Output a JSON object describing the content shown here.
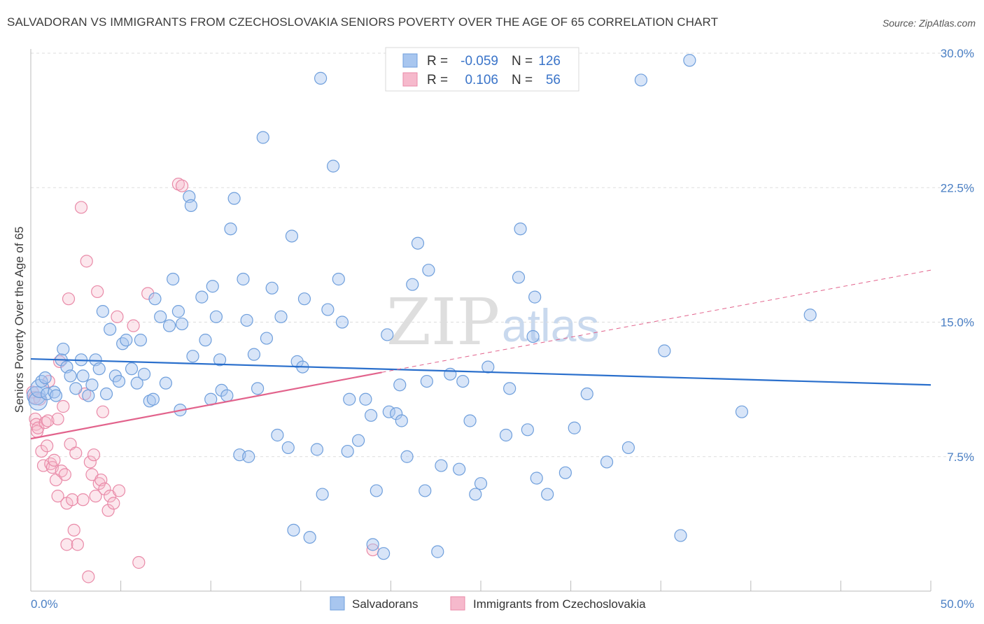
{
  "title": "SALVADORAN VS IMMIGRANTS FROM CZECHOSLOVAKIA SENIORS POVERTY OVER THE AGE OF 65 CORRELATION CHART",
  "source": "Source: ZipAtlas.com",
  "watermark": {
    "zip": "ZIP",
    "atlas": "atlas"
  },
  "colors": {
    "blue_fill": "#a8c6ef",
    "blue_stroke": "#6f9fdc",
    "blue_line": "#2a6fcc",
    "pink_fill": "#f6b9cc",
    "pink_stroke": "#e98aa8",
    "pink_line": "#e2638c",
    "grid": "#dddddd",
    "tick_text": "#4a7fc4"
  },
  "legend": {
    "row1": {
      "r_label": "R =",
      "r_value": "-0.059",
      "n_label": "N =",
      "n_value": "126"
    },
    "row2": {
      "r_label": "R =",
      "r_value": "0.106",
      "n_label": "N =",
      "n_value": "56"
    }
  },
  "chart_data": {
    "type": "scatter",
    "title": "SALVADORAN VS IMMIGRANTS FROM CZECHOSLOVAKIA SENIORS POVERTY OVER THE AGE OF 65 CORRELATION CHART",
    "xlabel": "",
    "ylabel": "Seniors Poverty Over the Age of 65",
    "xlim": [
      0,
      50
    ],
    "ylim": [
      0,
      30.6
    ],
    "x_tick_labels": [
      "0.0%",
      "50.0%"
    ],
    "y_ticks": [
      7.5,
      15.0,
      22.5,
      30.0
    ],
    "y_tick_labels": [
      "7.5%",
      "15.0%",
      "22.5%",
      "30.0%"
    ],
    "grid": true,
    "legend_position": "top-center",
    "series": [
      {
        "name": "Salvadorans",
        "r": -0.059,
        "n": 126,
        "trend": {
          "x": [
            0,
            50
          ],
          "y": [
            12.95,
            11.5
          ]
        },
        "points": [
          [
            0.3,
            10.9
          ],
          [
            0.4,
            10.6
          ],
          [
            0.5,
            11.3
          ],
          [
            0.6,
            11.7
          ],
          [
            0.8,
            11.9
          ],
          [
            0.9,
            11.0
          ],
          [
            1.3,
            11.1
          ],
          [
            1.4,
            10.9
          ],
          [
            1.7,
            12.9
          ],
          [
            1.8,
            13.5
          ],
          [
            2.0,
            12.5
          ],
          [
            2.2,
            12.0
          ],
          [
            2.5,
            11.3
          ],
          [
            2.8,
            12.9
          ],
          [
            2.9,
            12.0
          ],
          [
            3.2,
            10.9
          ],
          [
            3.4,
            11.5
          ],
          [
            3.6,
            12.9
          ],
          [
            3.8,
            12.4
          ],
          [
            4.0,
            15.6
          ],
          [
            4.2,
            11.0
          ],
          [
            4.4,
            14.6
          ],
          [
            4.7,
            12.0
          ],
          [
            4.9,
            11.7
          ],
          [
            5.1,
            13.8
          ],
          [
            5.3,
            14.0
          ],
          [
            5.6,
            12.4
          ],
          [
            5.9,
            11.6
          ],
          [
            6.1,
            14.0
          ],
          [
            6.3,
            12.1
          ],
          [
            6.6,
            10.6
          ],
          [
            6.8,
            10.7
          ],
          [
            6.9,
            16.3
          ],
          [
            7.2,
            15.3
          ],
          [
            7.5,
            11.6
          ],
          [
            7.7,
            14.8
          ],
          [
            7.9,
            17.4
          ],
          [
            8.2,
            15.6
          ],
          [
            8.3,
            10.1
          ],
          [
            8.4,
            14.9
          ],
          [
            8.8,
            22.0
          ],
          [
            8.9,
            21.5
          ],
          [
            9.0,
            13.1
          ],
          [
            9.5,
            16.4
          ],
          [
            9.7,
            14.0
          ],
          [
            10.0,
            10.7
          ],
          [
            10.1,
            17.0
          ],
          [
            10.3,
            15.3
          ],
          [
            10.5,
            12.9
          ],
          [
            10.6,
            11.2
          ],
          [
            10.9,
            10.9
          ],
          [
            11.1,
            20.2
          ],
          [
            11.3,
            21.9
          ],
          [
            11.6,
            7.6
          ],
          [
            11.8,
            17.4
          ],
          [
            12.0,
            15.1
          ],
          [
            12.1,
            7.5
          ],
          [
            12.4,
            13.2
          ],
          [
            12.6,
            11.3
          ],
          [
            12.9,
            25.3
          ],
          [
            13.1,
            14.1
          ],
          [
            13.4,
            16.9
          ],
          [
            13.7,
            8.7
          ],
          [
            13.9,
            15.3
          ],
          [
            14.3,
            8.0
          ],
          [
            14.5,
            19.8
          ],
          [
            14.6,
            3.4
          ],
          [
            14.8,
            12.8
          ],
          [
            15.1,
            12.5
          ],
          [
            15.2,
            16.3
          ],
          [
            15.5,
            3.0
          ],
          [
            15.9,
            7.9
          ],
          [
            16.2,
            5.4
          ],
          [
            16.5,
            15.7
          ],
          [
            16.1,
            28.6
          ],
          [
            16.8,
            23.7
          ],
          [
            17.1,
            17.4
          ],
          [
            17.3,
            15.0
          ],
          [
            17.6,
            7.8
          ],
          [
            17.7,
            10.7
          ],
          [
            18.2,
            8.4
          ],
          [
            18.6,
            10.7
          ],
          [
            18.9,
            9.8
          ],
          [
            19.0,
            2.6
          ],
          [
            19.2,
            5.6
          ],
          [
            19.6,
            2.1
          ],
          [
            19.8,
            14.3
          ],
          [
            19.9,
            10.0
          ],
          [
            20.3,
            9.9
          ],
          [
            20.5,
            11.5
          ],
          [
            20.6,
            9.5
          ],
          [
            20.9,
            7.5
          ],
          [
            21.2,
            17.1
          ],
          [
            21.5,
            19.4
          ],
          [
            21.9,
            5.6
          ],
          [
            22.0,
            11.7
          ],
          [
            22.1,
            17.9
          ],
          [
            22.6,
            2.2
          ],
          [
            22.8,
            7.0
          ],
          [
            23.3,
            12.1
          ],
          [
            23.8,
            6.8
          ],
          [
            24.0,
            11.7
          ],
          [
            24.4,
            9.5
          ],
          [
            24.7,
            5.4
          ],
          [
            25.0,
            6.0
          ],
          [
            25.4,
            12.5
          ],
          [
            26.4,
            8.7
          ],
          [
            26.5,
            28.4
          ],
          [
            26.6,
            11.3
          ],
          [
            27.1,
            17.5
          ],
          [
            27.2,
            20.2
          ],
          [
            27.6,
            9.0
          ],
          [
            27.9,
            14.2
          ],
          [
            28.0,
            16.4
          ],
          [
            28.1,
            6.3
          ],
          [
            28.7,
            5.4
          ],
          [
            29.7,
            6.6
          ],
          [
            30.2,
            9.1
          ],
          [
            30.9,
            11.0
          ],
          [
            32.0,
            7.2
          ],
          [
            33.2,
            8.0
          ],
          [
            33.9,
            28.5
          ],
          [
            35.2,
            13.4
          ],
          [
            36.1,
            3.1
          ],
          [
            36.6,
            29.6
          ],
          [
            39.5,
            10.0
          ],
          [
            43.3,
            15.4
          ]
        ]
      },
      {
        "name": "Immigrants from Czechoslovakia",
        "r": 0.106,
        "n": 56,
        "trend": {
          "x": [
            0,
            19.5
          ],
          "y": [
            8.5,
            12.2
          ]
        },
        "trend_dashed": {
          "x": [
            19.5,
            50
          ],
          "y": [
            12.2,
            17.9
          ]
        },
        "points": [
          [
            0.1,
            11.1
          ],
          [
            0.2,
            10.8
          ],
          [
            0.25,
            9.6
          ],
          [
            0.3,
            9.3
          ],
          [
            0.35,
            8.9
          ],
          [
            0.4,
            9.1
          ],
          [
            0.5,
            10.7
          ],
          [
            0.6,
            7.8
          ],
          [
            0.7,
            7.0
          ],
          [
            0.8,
            9.4
          ],
          [
            0.9,
            8.1
          ],
          [
            0.95,
            9.5
          ],
          [
            1.0,
            11.7
          ],
          [
            1.1,
            7.1
          ],
          [
            1.2,
            6.9
          ],
          [
            1.3,
            7.3
          ],
          [
            1.4,
            6.2
          ],
          [
            1.5,
            5.3
          ],
          [
            1.5,
            9.6
          ],
          [
            1.6,
            12.8
          ],
          [
            1.7,
            6.7
          ],
          [
            1.8,
            10.3
          ],
          [
            1.9,
            6.5
          ],
          [
            2.0,
            4.9
          ],
          [
            2.0,
            2.6
          ],
          [
            2.1,
            16.3
          ],
          [
            2.2,
            8.2
          ],
          [
            2.3,
            5.1
          ],
          [
            2.4,
            3.4
          ],
          [
            2.5,
            7.7
          ],
          [
            2.6,
            2.6
          ],
          [
            2.8,
            21.4
          ],
          [
            2.9,
            5.1
          ],
          [
            3.0,
            11.0
          ],
          [
            3.1,
            18.4
          ],
          [
            3.2,
            0.8
          ],
          [
            3.3,
            7.2
          ],
          [
            3.4,
            6.5
          ],
          [
            3.5,
            7.6
          ],
          [
            3.6,
            5.3
          ],
          [
            3.7,
            16.7
          ],
          [
            3.8,
            6.0
          ],
          [
            3.9,
            6.2
          ],
          [
            4.0,
            10.0
          ],
          [
            4.1,
            5.7
          ],
          [
            4.3,
            4.5
          ],
          [
            4.4,
            5.3
          ],
          [
            4.6,
            4.9
          ],
          [
            4.8,
            15.3
          ],
          [
            4.9,
            5.6
          ],
          [
            5.7,
            14.8
          ],
          [
            6.0,
            1.6
          ],
          [
            6.5,
            16.6
          ],
          [
            8.2,
            22.7
          ],
          [
            8.4,
            22.6
          ],
          [
            19.0,
            2.3
          ]
        ]
      }
    ]
  },
  "bottom_legend": {
    "x_left": "0.0%",
    "x_right": "50.0%",
    "series1": "Salvadorans",
    "series2": "Immigrants from Czechoslovakia"
  }
}
